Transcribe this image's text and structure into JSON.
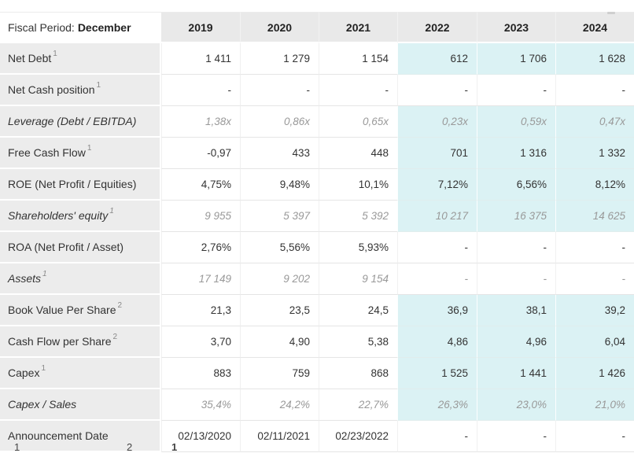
{
  "header": {
    "fiscal_period_label": "Fiscal Period:",
    "fiscal_period_value": "December",
    "years": [
      "2019",
      "2020",
      "2021",
      "2022",
      "2023",
      "2024"
    ]
  },
  "estimate_columns_start_index": 3,
  "colors": {
    "estimate_bg": "#dbf2f4",
    "label_bg": "#ececec",
    "header_bg": "#e9e9e9",
    "text": "#333333",
    "muted_text": "#999999"
  },
  "rows": [
    {
      "label": "Net Debt",
      "sup": "1",
      "italic": false,
      "estimates": true,
      "values": [
        "1 411",
        "1 279",
        "1 154",
        "612",
        "1 706",
        "1 628"
      ]
    },
    {
      "label": "Net Cash position",
      "sup": "1",
      "italic": false,
      "estimates": false,
      "values": [
        "-",
        "-",
        "-",
        "-",
        "-",
        "-"
      ]
    },
    {
      "label": "Leverage (Debt / EBITDA)",
      "sup": "",
      "italic": true,
      "estimates": true,
      "values": [
        "1,38x",
        "0,86x",
        "0,65x",
        "0,23x",
        "0,59x",
        "0,47x"
      ]
    },
    {
      "label": "Free Cash Flow",
      "sup": "1",
      "italic": false,
      "estimates": true,
      "values": [
        "-0,97",
        "433",
        "448",
        "701",
        "1 316",
        "1 332"
      ]
    },
    {
      "label": "ROE (Net Profit / Equities)",
      "sup": "",
      "italic": false,
      "estimates": true,
      "values": [
        "4,75%",
        "9,48%",
        "10,1%",
        "7,12%",
        "6,56%",
        "8,12%"
      ]
    },
    {
      "label": "Shareholders' equity",
      "sup": "1",
      "italic": true,
      "estimates": true,
      "values": [
        "9 955",
        "5 397",
        "5 392",
        "10 217",
        "16 375",
        "14 625"
      ]
    },
    {
      "label": "ROA (Net Profit / Asset)",
      "sup": "",
      "italic": false,
      "estimates": false,
      "values": [
        "2,76%",
        "5,56%",
        "5,93%",
        "-",
        "-",
        "-"
      ]
    },
    {
      "label": "Assets",
      "sup": "1",
      "italic": true,
      "estimates": false,
      "values": [
        "17 149",
        "9 202",
        "9 154",
        "-",
        "-",
        "-"
      ]
    },
    {
      "label": "Book Value Per Share",
      "sup": "2",
      "italic": false,
      "estimates": true,
      "values": [
        "21,3",
        "23,5",
        "24,5",
        "36,9",
        "38,1",
        "39,2"
      ]
    },
    {
      "label": "Cash Flow per Share",
      "sup": "2",
      "italic": false,
      "estimates": true,
      "values": [
        "3,70",
        "4,90",
        "5,38",
        "4,86",
        "4,96",
        "6,04"
      ]
    },
    {
      "label": "Capex",
      "sup": "1",
      "italic": false,
      "estimates": true,
      "values": [
        "883",
        "759",
        "868",
        "1 525",
        "1 441",
        "1 426"
      ]
    },
    {
      "label": "Capex / Sales",
      "sup": "",
      "italic": true,
      "estimates": true,
      "values": [
        "35,4%",
        "24,2%",
        "22,7%",
        "26,3%",
        "23,0%",
        "21,0%"
      ]
    },
    {
      "label": "Announcement Date",
      "sup": "",
      "italic": false,
      "estimates": false,
      "values": [
        "02/13/2020",
        "02/11/2021",
        "02/23/2022",
        "-",
        "-",
        "-"
      ]
    }
  ],
  "footnote_markers": [
    "1",
    "2",
    "1"
  ]
}
